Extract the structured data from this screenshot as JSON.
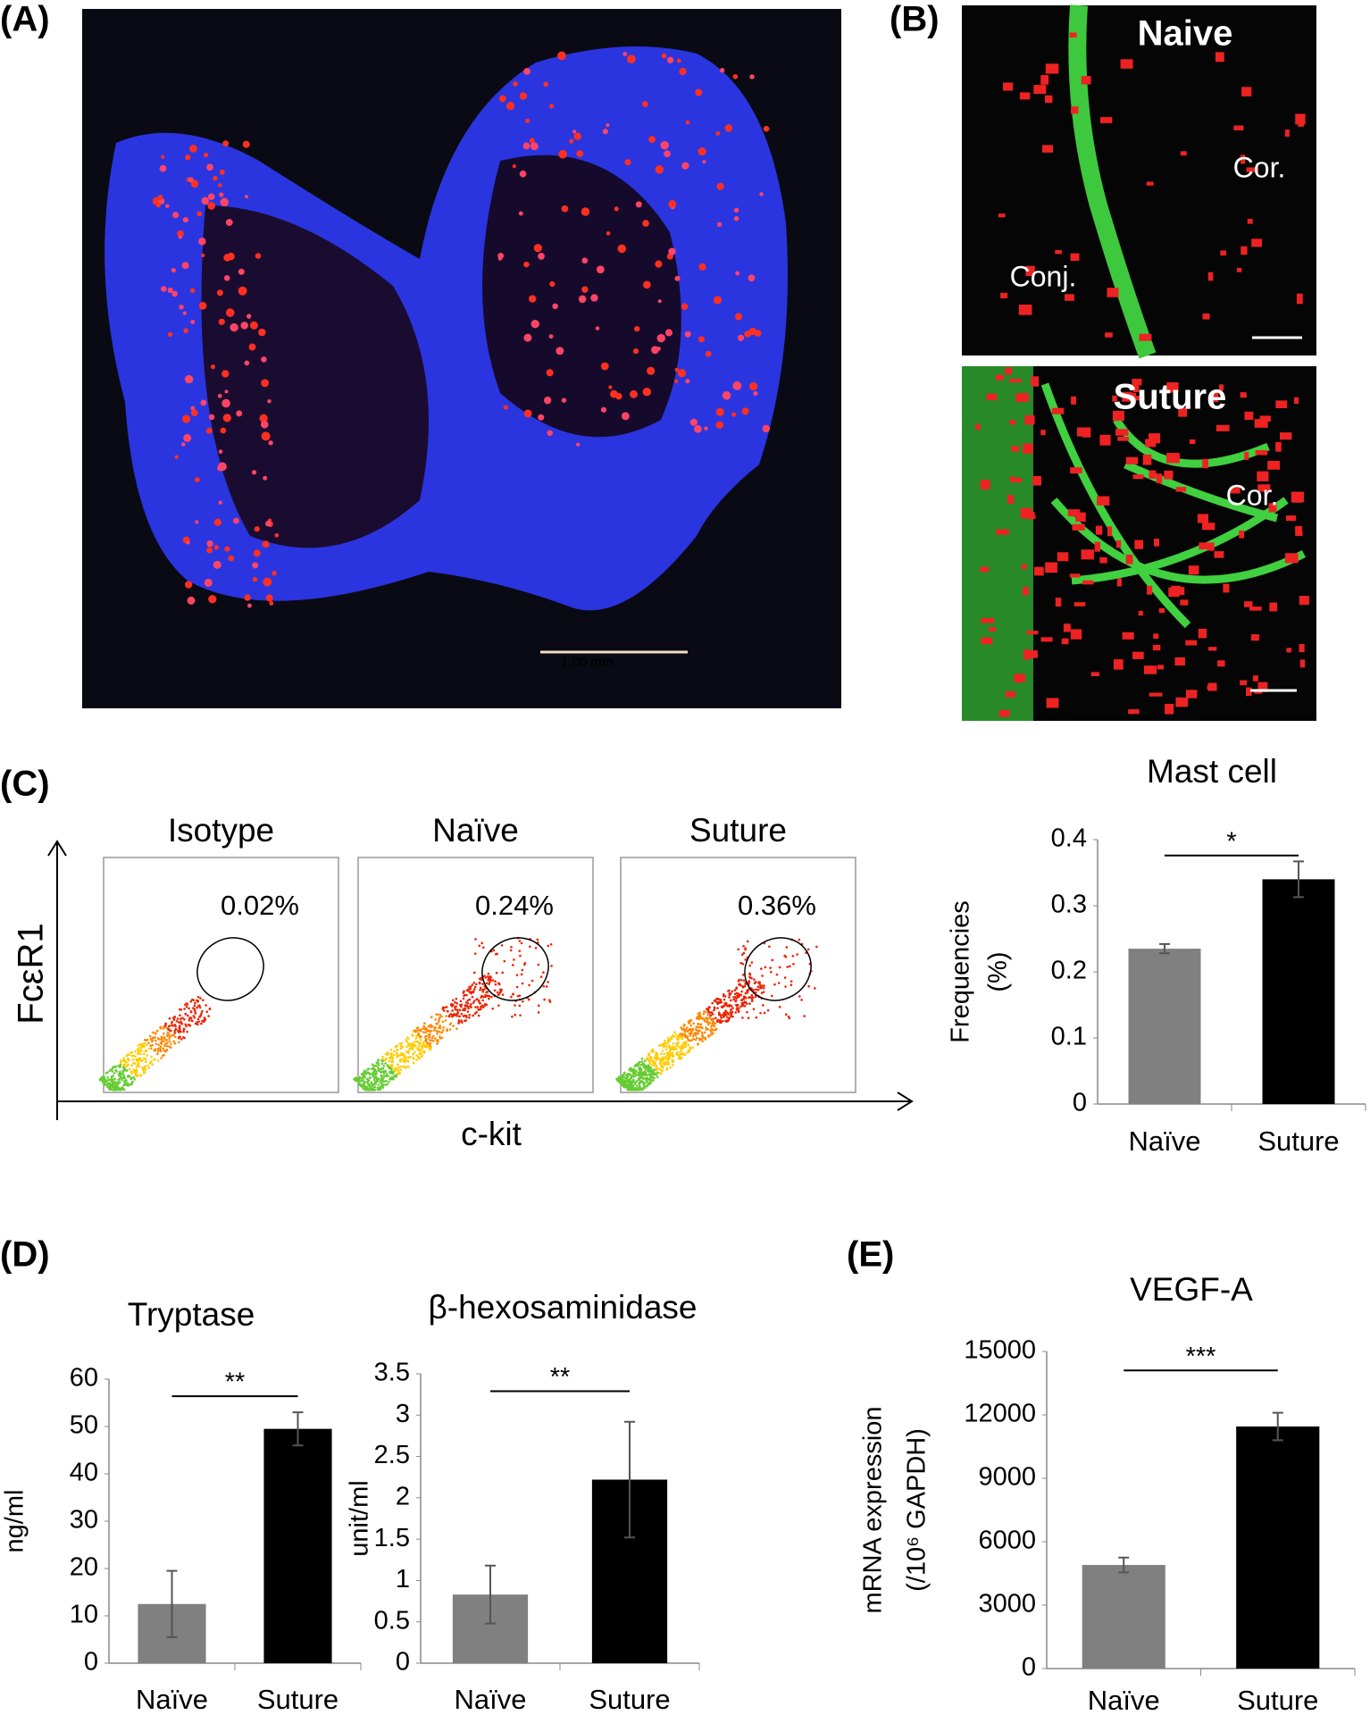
{
  "panel_labels": [
    "(A)",
    "(B)",
    "(C)",
    "(D)",
    "(E)"
  ],
  "images": {
    "A": {
      "scale_label": "1.00 mm"
    },
    "B": [
      {
        "title": "Naive",
        "labels": [
          "Cor.",
          "Conj."
        ]
      },
      {
        "title": "Suture",
        "labels": [
          "Cor."
        ]
      }
    ]
  },
  "flow": {
    "x_label": "c-kit",
    "y_label": "FcεR1",
    "plots": [
      {
        "title": "Isotype",
        "gate": "0.02%"
      },
      {
        "title": "Naïve",
        "gate": "0.24%"
      },
      {
        "title": "Suture",
        "gate": "0.36%"
      }
    ]
  },
  "chart_data": [
    {
      "type": "bar",
      "title": "Mast cell",
      "y_label": [
        "Frequencies",
        "(%)"
      ],
      "categories": [
        "Naïve",
        "Suture"
      ],
      "values": [
        0.235,
        0.34
      ],
      "errors": [
        0.007,
        0.027
      ],
      "colors": [
        "#808080",
        "#000000"
      ],
      "ylim": [
        0,
        0.4
      ],
      "yticks": [
        0,
        0.1,
        0.2,
        0.3,
        0.4
      ],
      "significance": "*"
    },
    {
      "type": "bar",
      "title": "Tryptase",
      "y_label": [
        "ng/ml"
      ],
      "categories": [
        "Naïve",
        "Suture"
      ],
      "values": [
        12.5,
        49.5
      ],
      "errors": [
        7,
        3.5
      ],
      "colors": [
        "#808080",
        "#000000"
      ],
      "ylim": [
        0,
        60
      ],
      "yticks": [
        0,
        10,
        20,
        30,
        40,
        50,
        60
      ],
      "significance": "**"
    },
    {
      "type": "bar",
      "title": "β-hexosaminidase",
      "y_label": [
        "unit/ml"
      ],
      "categories": [
        "Naïve",
        "Suture"
      ],
      "values": [
        0.83,
        2.22
      ],
      "errors": [
        0.35,
        0.7
      ],
      "colors": [
        "#808080",
        "#000000"
      ],
      "ylim": [
        0,
        3.5
      ],
      "yticks": [
        0,
        0.5,
        1,
        1.5,
        2,
        2.5,
        3,
        3.5
      ],
      "significance": "**"
    },
    {
      "type": "bar",
      "title": "VEGF-A",
      "y_label": [
        "mRNA expression",
        "(/10⁶ GAPDH)"
      ],
      "categories": [
        "Naïve",
        "Suture"
      ],
      "values": [
        4900,
        11450
      ],
      "errors": [
        350,
        650
      ],
      "colors": [
        "#808080",
        "#000000"
      ],
      "ylim": [
        0,
        15000
      ],
      "yticks": [
        0,
        3000,
        6000,
        9000,
        12000,
        15000
      ],
      "significance": "***"
    }
  ]
}
